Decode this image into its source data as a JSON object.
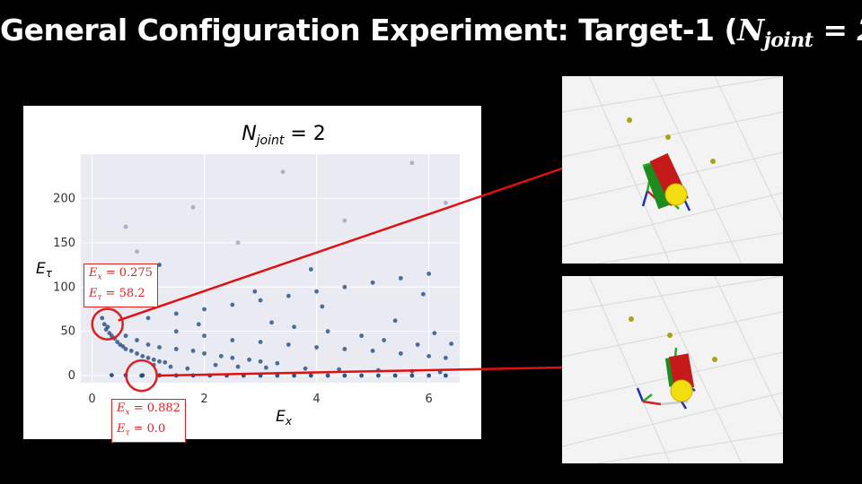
{
  "slide": {
    "title_prefix": "General Configuration Experiment: Target-1 (",
    "title_math_base": "N",
    "title_math_sub": "joint",
    "title_math_rest": " = 2",
    "title_suffix": ")"
  },
  "chart_data": {
    "type": "scatter",
    "title": "N_joint = 2",
    "title_base": "N",
    "title_sub": "joint",
    "title_rest": " = 2",
    "xlabel": "E_x",
    "xlabel_base": "E",
    "xlabel_sub": "x",
    "ylabel": "E_τ",
    "ylabel_base": "E",
    "ylabel_sub": "τ",
    "xlim": [
      -0.2,
      6.55
    ],
    "ylim": [
      -8,
      250
    ],
    "xticks": [
      0,
      2,
      4,
      6
    ],
    "yticks": [
      0,
      50,
      100,
      150,
      200
    ],
    "grid": true,
    "background": "#eaeaf2",
    "point_color": "#1f4e85",
    "series": [
      {
        "points": [
          [
            0.18,
            65
          ],
          [
            0.22,
            58
          ],
          [
            0.28,
            55
          ],
          [
            0.31,
            48
          ],
          [
            0.25,
            52
          ],
          [
            0.35,
            45
          ],
          [
            0.4,
            42
          ],
          [
            0.45,
            38
          ],
          [
            0.5,
            35
          ],
          [
            0.55,
            33
          ],
          [
            0.6,
            30
          ],
          [
            0.7,
            28
          ],
          [
            0.8,
            25
          ],
          [
            0.9,
            22
          ],
          [
            1.0,
            20
          ],
          [
            1.1,
            18
          ],
          [
            1.2,
            16
          ],
          [
            1.3,
            15
          ],
          [
            0.6,
            45
          ],
          [
            0.8,
            40
          ],
          [
            1.0,
            35
          ],
          [
            1.2,
            32
          ],
          [
            1.5,
            30
          ],
          [
            1.8,
            28
          ],
          [
            2.0,
            25
          ],
          [
            2.3,
            22
          ],
          [
            2.5,
            20
          ],
          [
            2.8,
            18
          ],
          [
            3.0,
            16
          ],
          [
            3.3,
            14
          ],
          [
            1.5,
            50
          ],
          [
            2.0,
            45
          ],
          [
            2.5,
            40
          ],
          [
            3.0,
            38
          ],
          [
            3.5,
            35
          ],
          [
            4.0,
            32
          ],
          [
            4.5,
            30
          ],
          [
            5.0,
            28
          ],
          [
            5.5,
            25
          ],
          [
            6.0,
            22
          ],
          [
            6.3,
            20
          ],
          [
            1.0,
            65
          ],
          [
            1.5,
            70
          ],
          [
            2.0,
            75
          ],
          [
            2.5,
            80
          ],
          [
            3.0,
            85
          ],
          [
            3.5,
            90
          ],
          [
            4.0,
            95
          ],
          [
            4.5,
            100
          ],
          [
            5.0,
            105
          ],
          [
            5.5,
            110
          ],
          [
            6.0,
            115
          ],
          [
            0.5,
            90
          ],
          [
            0.6,
            110
          ],
          [
            0.8,
            140
          ],
          [
            1.2,
            125
          ],
          [
            0.9,
            100
          ],
          [
            3.2,
            60
          ],
          [
            3.6,
            55
          ],
          [
            4.2,
            50
          ],
          [
            4.8,
            45
          ],
          [
            5.2,
            40
          ],
          [
            5.8,
            35
          ],
          [
            2.2,
            12
          ],
          [
            2.6,
            10
          ],
          [
            3.1,
            9
          ],
          [
            3.8,
            8
          ],
          [
            4.4,
            7
          ],
          [
            5.1,
            6
          ],
          [
            5.7,
            5
          ],
          [
            6.2,
            4
          ],
          [
            1.7,
            8
          ],
          [
            1.4,
            10
          ],
          [
            1.1,
            12
          ],
          [
            3.4,
            230
          ],
          [
            5.7,
            240
          ],
          [
            4.5,
            175
          ],
          [
            6.3,
            195
          ],
          [
            2.6,
            150
          ],
          [
            1.8,
            190
          ],
          [
            0.6,
            168
          ],
          [
            3.9,
            120
          ],
          [
            5.4,
            62
          ],
          [
            4.1,
            78
          ],
          [
            2.9,
            95
          ],
          [
            1.9,
            58
          ],
          [
            6.1,
            48
          ],
          [
            6.4,
            36
          ],
          [
            5.9,
            92
          ]
        ]
      },
      {
        "points": [
          [
            0.35,
            0.5
          ],
          [
            0.6,
            0.4
          ],
          [
            0.9,
            0.3
          ],
          [
            1.2,
            0.3
          ],
          [
            1.5,
            0.2
          ],
          [
            1.8,
            0.2
          ],
          [
            2.1,
            0.2
          ],
          [
            2.4,
            0.1
          ],
          [
            2.7,
            0.1
          ],
          [
            3.0,
            0.1
          ],
          [
            3.3,
            0.1
          ],
          [
            3.6,
            0.1
          ],
          [
            3.9,
            0.1
          ],
          [
            4.2,
            0.1
          ],
          [
            4.5,
            0.1
          ],
          [
            4.8,
            0.1
          ],
          [
            5.1,
            0.1
          ],
          [
            5.4,
            0.1
          ],
          [
            5.7,
            0.1
          ],
          [
            6.0,
            0.1
          ],
          [
            6.3,
            0.1
          ],
          [
            0.882,
            0.0
          ]
        ]
      }
    ],
    "annotations": [
      {
        "x": 0.275,
        "y": 58.2,
        "line1_base": "E",
        "line1_sub": "x",
        "line1_val": " = 0.275",
        "line2_base": "E",
        "line2_sub": "τ",
        "line2_val": " = 58.2"
      },
      {
        "x": 0.882,
        "y": 0.0,
        "line1_base": "E",
        "line1_sub": "x",
        "line1_val": " = 0.882",
        "line2_base": "E",
        "line2_sub": "τ",
        "line2_val": " = 0.0"
      }
    ]
  },
  "colors": {
    "annotation": "#dd1f1f",
    "link": "#e01010",
    "robot_red": "#c41a1a",
    "target_yellow": "#f2dd10",
    "waypoint": "#a8a318"
  },
  "views": [
    {
      "name": "simulation-view-min-torque"
    },
    {
      "name": "simulation-view-min-position"
    }
  ]
}
